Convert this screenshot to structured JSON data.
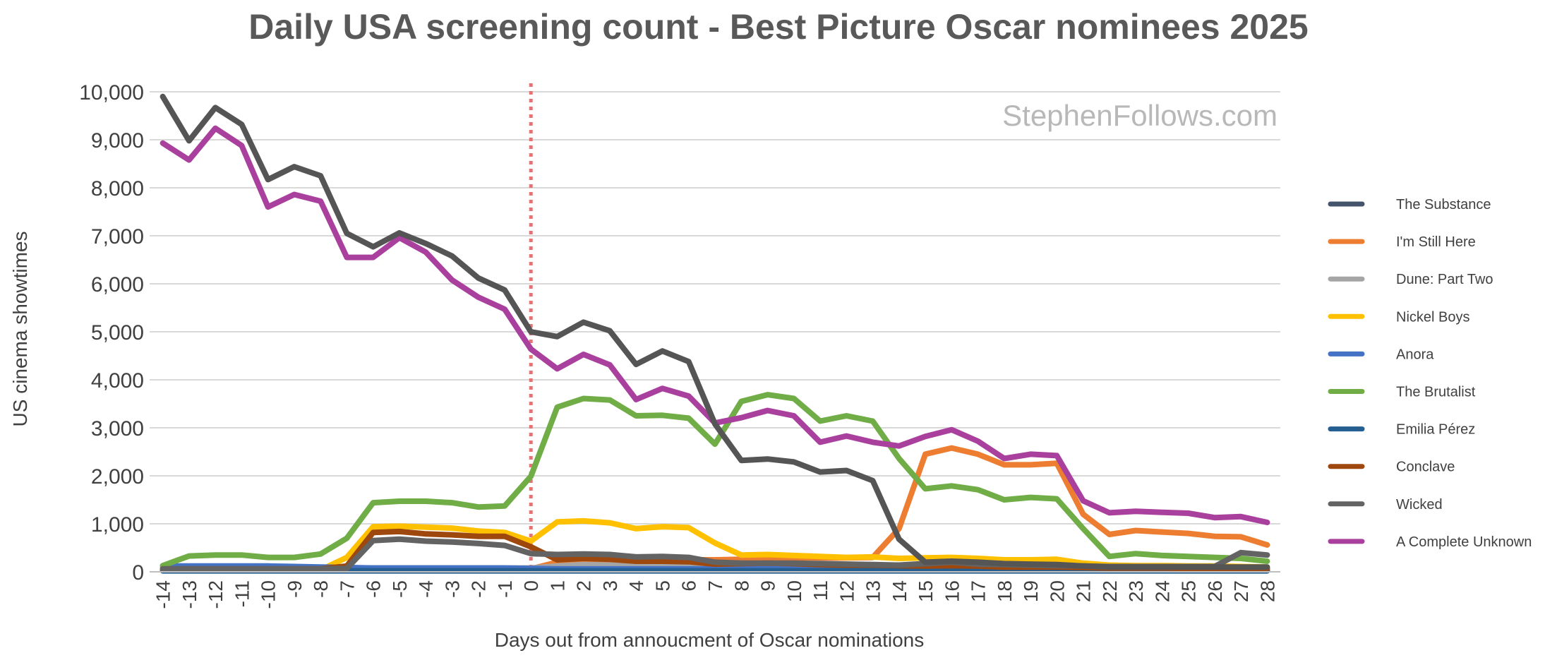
{
  "chart_data": {
    "type": "line",
    "title": "Daily USA screening count - Best Picture Oscar nominees 2025",
    "watermark": "StephenFollows.com",
    "xlabel": "Days out from annoucment of Oscar nominations",
    "ylabel": "US cinema showtimes",
    "ylim": [
      0,
      10000
    ],
    "yticks": [
      "0",
      "1,000",
      "2,000",
      "3,000",
      "4,000",
      "5,000",
      "6,000",
      "7,000",
      "8,000",
      "9,000",
      "10,000"
    ],
    "x": [
      -14,
      -13,
      -12,
      -11,
      -10,
      -9,
      -8,
      -7,
      -6,
      -5,
      -4,
      -3,
      -2,
      -1,
      0,
      1,
      2,
      3,
      4,
      5,
      6,
      7,
      8,
      9,
      10,
      11,
      12,
      13,
      14,
      15,
      16,
      17,
      18,
      19,
      20,
      21,
      22,
      23,
      24,
      25,
      26,
      27,
      28
    ],
    "reference_line_x": 0,
    "reference_line_color": "#e57373",
    "gridlines": true,
    "legend_position": "right",
    "series": [
      {
        "name": "The Substance",
        "color": "#44546a",
        "values": [
          30,
          30,
          30,
          30,
          30,
          30,
          30,
          30,
          30,
          30,
          30,
          30,
          30,
          30,
          30,
          30,
          30,
          30,
          30,
          30,
          30,
          30,
          30,
          30,
          30,
          30,
          30,
          30,
          30,
          30,
          30,
          30,
          30,
          30,
          30,
          30,
          30,
          30,
          30,
          30,
          30,
          30,
          30
        ]
      },
      {
        "name": "I'm Still Here",
        "color": "#ed7d31",
        "values": [
          40,
          40,
          40,
          40,
          40,
          40,
          40,
          40,
          40,
          40,
          40,
          40,
          40,
          40,
          60,
          200,
          220,
          230,
          250,
          260,
          250,
          250,
          260,
          280,
          290,
          290,
          290,
          300,
          900,
          2450,
          2580,
          2450,
          2230,
          2230,
          2260,
          1200,
          780,
          860,
          830,
          800,
          740,
          730,
          560
        ]
      },
      {
        "name": "Dune: Part Two",
        "color": "#a5a5a5",
        "values": [
          80,
          80,
          80,
          80,
          80,
          80,
          80,
          80,
          80,
          80,
          80,
          80,
          80,
          80,
          80,
          120,
          150,
          140,
          130,
          130,
          120,
          110,
          100,
          100,
          100,
          100,
          100,
          100,
          90,
          80,
          80,
          80,
          80,
          80,
          80,
          70,
          70,
          70,
          70,
          70,
          70,
          70,
          70
        ]
      },
      {
        "name": "Nickel Boys",
        "color": "#ffc000",
        "values": [
          40,
          40,
          40,
          40,
          40,
          40,
          40,
          300,
          940,
          950,
          930,
          910,
          850,
          820,
          640,
          1040,
          1060,
          1020,
          900,
          940,
          920,
          600,
          350,
          360,
          340,
          320,
          300,
          310,
          280,
          290,
          300,
          280,
          250,
          250,
          260,
          180,
          140,
          130,
          130,
          120,
          120,
          110,
          100
        ]
      },
      {
        "name": "Anora",
        "color": "#4472c4",
        "values": [
          120,
          120,
          120,
          120,
          120,
          110,
          100,
          90,
          80,
          80,
          80,
          80,
          80,
          80,
          70,
          60,
          60,
          60,
          60,
          60,
          60,
          60,
          60,
          60,
          60,
          60,
          60,
          60,
          60,
          60,
          60,
          60,
          60,
          60,
          60,
          60,
          60,
          60,
          60,
          60,
          60,
          60,
          60
        ]
      },
      {
        "name": "The Brutalist",
        "color": "#70ad47",
        "values": [
          130,
          330,
          350,
          350,
          300,
          300,
          370,
          700,
          1440,
          1470,
          1470,
          1440,
          1350,
          1370,
          1990,
          3430,
          3610,
          3580,
          3250,
          3260,
          3200,
          2660,
          3550,
          3690,
          3610,
          3140,
          3250,
          3140,
          2360,
          1730,
          1790,
          1710,
          1500,
          1550,
          1520,
          900,
          320,
          380,
          340,
          320,
          300,
          280,
          220
        ]
      },
      {
        "name": "Emilia Pérez",
        "color": "#255e91",
        "values": [
          20,
          20,
          20,
          20,
          20,
          20,
          20,
          20,
          20,
          20,
          20,
          20,
          20,
          20,
          20,
          20,
          20,
          20,
          20,
          20,
          20,
          20,
          20,
          20,
          20,
          20,
          20,
          20,
          20,
          20,
          20,
          20,
          20,
          20,
          20,
          20,
          20,
          20,
          20,
          20,
          20,
          20,
          20
        ]
      },
      {
        "name": "Conclave",
        "color": "#9e480e",
        "values": [
          60,
          60,
          60,
          60,
          60,
          60,
          60,
          120,
          820,
          840,
          790,
          770,
          740,
          740,
          520,
          250,
          280,
          260,
          220,
          220,
          210,
          160,
          170,
          180,
          170,
          150,
          140,
          140,
          130,
          120,
          130,
          120,
          100,
          100,
          100,
          90,
          80,
          80,
          80,
          70,
          70,
          70,
          70
        ]
      },
      {
        "name": "Wicked",
        "color": "#636363",
        "values": [
          60,
          60,
          60,
          60,
          60,
          60,
          60,
          70,
          650,
          680,
          640,
          620,
          590,
          550,
          380,
          360,
          370,
          360,
          310,
          320,
          300,
          200,
          180,
          180,
          180,
          170,
          160,
          150,
          140,
          170,
          200,
          160,
          150,
          140,
          130,
          120,
          110,
          110,
          110,
          110,
          110,
          400,
          350
        ]
      },
      {
        "name": "A Complete Unknown",
        "color": "#a9409e",
        "values": [
          8930,
          8580,
          9240,
          8880,
          7600,
          7860,
          7720,
          6550,
          6550,
          6960,
          6660,
          6080,
          5720,
          5470,
          4640,
          4230,
          4530,
          4310,
          3590,
          3820,
          3660,
          3100,
          3210,
          3360,
          3250,
          2700,
          2830,
          2700,
          2620,
          2820,
          2960,
          2720,
          2360,
          2450,
          2420,
          1480,
          1230,
          1260,
          1240,
          1220,
          1130,
          1150,
          1030
        ]
      },
      {
        "name": "Dark grey highlight (unlabeled)",
        "color": "#555555",
        "unlabeled": true,
        "values": [
          9900,
          8980,
          9670,
          9320,
          8170,
          8440,
          8250,
          7050,
          6770,
          7060,
          6840,
          6580,
          6120,
          5870,
          5000,
          4900,
          5200,
          5020,
          4320,
          4600,
          4380,
          3080,
          2320,
          2350,
          2290,
          2080,
          2110,
          1900,
          680,
          200,
          220,
          200,
          170,
          160,
          150,
          120,
          100,
          100,
          100,
          100,
          100,
          100,
          100
        ]
      }
    ],
    "legend_entries": [
      "The Substance",
      "I'm Still Here",
      "Dune: Part Two",
      "Nickel Boys",
      "Anora",
      "The Brutalist",
      "Emilia Pérez",
      "Conclave",
      "Wicked",
      "A Complete Unknown"
    ]
  }
}
